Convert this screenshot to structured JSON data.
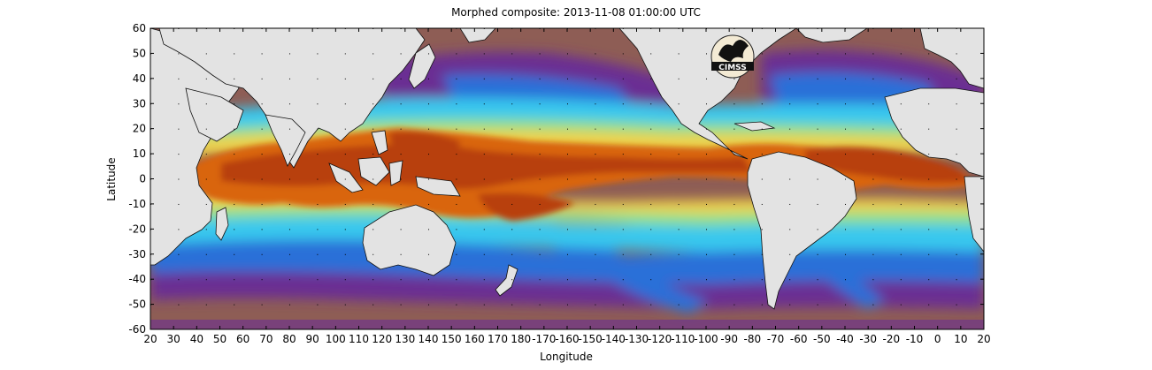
{
  "title": "Morphed composite: 2013-11-08 01:00:00 UTC",
  "xlabel": "Longitude",
  "ylabel": "Latitude",
  "x_ticks": [
    "20",
    "30",
    "40",
    "50",
    "60",
    "70",
    "80",
    "90",
    "100",
    "110",
    "120",
    "130",
    "140",
    "150",
    "160",
    "170",
    "180",
    "-170",
    "-160",
    "-150",
    "-140",
    "-130",
    "-120",
    "-110",
    "-100",
    "-90",
    "-80",
    "-70",
    "-60",
    "-50",
    "-40",
    "-30",
    "-20",
    "-10",
    "0",
    "10",
    "20"
  ],
  "y_ticks": [
    "60",
    "50",
    "40",
    "30",
    "20",
    "10",
    "0",
    "-10",
    "-20",
    "-30",
    "-40",
    "-50",
    "-60"
  ],
  "logo_text": "CIMSS",
  "colors": {
    "land": "#e3e3e3",
    "dry": "#8e5d55",
    "purple": "#6b2f93",
    "blue": "#2b6fd8",
    "cyan": "#38c8ee",
    "green": "#8fe08a",
    "yellow": "#f0d24a",
    "orange": "#d9650f",
    "deep_orange": "#b83f07"
  }
}
